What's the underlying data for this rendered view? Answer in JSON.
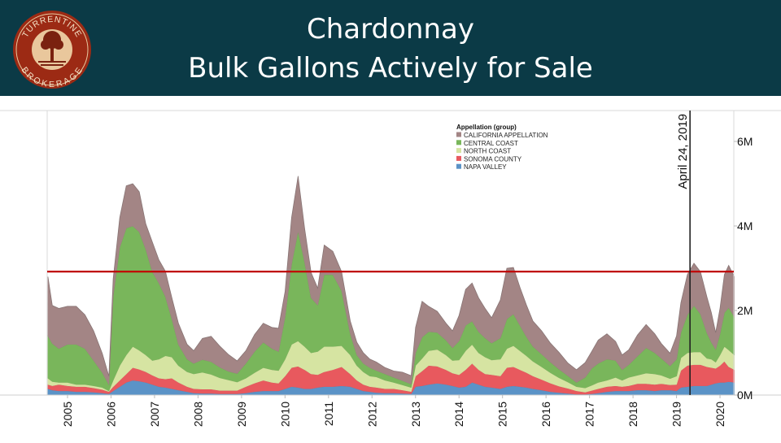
{
  "header": {
    "title_line1": "Chardonnay",
    "title_line2": "Bulk Gallons Actively for Sale",
    "logo_top_text": "TURRENTINE",
    "logo_bottom_text": "BROKERAGE",
    "background_color": "#0b3a46"
  },
  "chart_data": {
    "type": "area",
    "stacked": true,
    "title": "Chardonnay Bulk Gallons Actively for Sale",
    "xlabel": "",
    "ylabel": "",
    "xlim": [
      2004.55,
      2020.33
    ],
    "ylim": [
      0,
      6.7
    ],
    "y_unit": "M gallons",
    "x_ticks": [
      "2005",
      "2006",
      "2007",
      "2008",
      "2009",
      "2010",
      "2011",
      "2012",
      "2013",
      "2014",
      "2015",
      "2016",
      "2017",
      "2018",
      "2019",
      "2020"
    ],
    "y_ticks": [
      "0M",
      "2M",
      "4M",
      "6M"
    ],
    "y_tick_values": [
      0,
      2,
      4,
      6
    ],
    "grid": false,
    "legend": {
      "title": "Appellation (group)",
      "placement": "top-center",
      "entries": [
        "CALIFORNIA APPELLATION",
        "CENTRAL COAST",
        "NORTH COAST",
        "SONOMA COUNTY",
        "NAPA VALLEY"
      ]
    },
    "colors": {
      "NAPA VALLEY": "#5b93c7",
      "SONOMA COUNTY": "#e8595e",
      "NORTH COAST": "#d6e4a2",
      "CENTRAL COAST": "#79b65b",
      "CALIFORNIA APPELLATION": "#a38585"
    },
    "reference_line": {
      "value": 2.92,
      "color": "#c00000"
    },
    "annotation": {
      "label": "April 24, 2019",
      "x": 2019.31
    },
    "x": [
      2004.55,
      2004.65,
      2004.8,
      2005.0,
      2005.2,
      2005.4,
      2005.6,
      2005.8,
      2005.95,
      2006.05,
      2006.2,
      2006.35,
      2006.5,
      2006.65,
      2006.8,
      2006.95,
      2007.1,
      2007.25,
      2007.4,
      2007.55,
      2007.75,
      2007.9,
      2008.1,
      2008.3,
      2008.5,
      2008.7,
      2008.9,
      2009.1,
      2009.3,
      2009.5,
      2009.7,
      2009.85,
      2010.0,
      2010.15,
      2010.3,
      2010.45,
      2010.6,
      2010.75,
      2010.9,
      2011.1,
      2011.3,
      2011.5,
      2011.65,
      2011.8,
      2011.95,
      2012.1,
      2012.3,
      2012.5,
      2012.7,
      2012.9,
      2013.0,
      2013.15,
      2013.3,
      2013.5,
      2013.7,
      2013.85,
      2014.0,
      2014.15,
      2014.3,
      2014.45,
      2014.6,
      2014.75,
      2014.95,
      2015.1,
      2015.25,
      2015.4,
      2015.55,
      2015.7,
      2015.9,
      2016.1,
      2016.3,
      2016.5,
      2016.7,
      2016.9,
      2017.05,
      2017.2,
      2017.4,
      2017.6,
      2017.75,
      2017.9,
      2018.1,
      2018.3,
      2018.5,
      2018.65,
      2018.85,
      2019.0,
      2019.1,
      2019.25,
      2019.4,
      2019.55,
      2019.7,
      2019.8,
      2019.9,
      2020.0,
      2020.1,
      2020.2,
      2020.33
    ],
    "series": [
      {
        "name": "NAPA VALLEY",
        "values": [
          0.15,
          0.12,
          0.1,
          0.1,
          0.08,
          0.08,
          0.07,
          0.05,
          0.03,
          0.1,
          0.2,
          0.3,
          0.35,
          0.33,
          0.3,
          0.25,
          0.2,
          0.18,
          0.15,
          0.12,
          0.08,
          0.05,
          0.04,
          0.04,
          0.03,
          0.03,
          0.03,
          0.05,
          0.08,
          0.1,
          0.1,
          0.1,
          0.15,
          0.2,
          0.18,
          0.15,
          0.15,
          0.18,
          0.2,
          0.2,
          0.22,
          0.2,
          0.15,
          0.1,
          0.08,
          0.06,
          0.05,
          0.05,
          0.04,
          0.03,
          0.2,
          0.22,
          0.25,
          0.28,
          0.25,
          0.22,
          0.18,
          0.2,
          0.3,
          0.25,
          0.2,
          0.18,
          0.15,
          0.2,
          0.22,
          0.2,
          0.18,
          0.15,
          0.12,
          0.08,
          0.06,
          0.04,
          0.02,
          0.02,
          0.03,
          0.05,
          0.08,
          0.1,
          0.1,
          0.1,
          0.12,
          0.12,
          0.1,
          0.12,
          0.12,
          0.1,
          0.18,
          0.2,
          0.22,
          0.22,
          0.22,
          0.25,
          0.28,
          0.3,
          0.3,
          0.32,
          0.3
        ]
      },
      {
        "name": "SONOMA COUNTY",
        "values": [
          0.1,
          0.1,
          0.15,
          0.12,
          0.12,
          0.12,
          0.1,
          0.08,
          0.05,
          0.1,
          0.15,
          0.2,
          0.3,
          0.28,
          0.25,
          0.22,
          0.2,
          0.2,
          0.25,
          0.18,
          0.12,
          0.1,
          0.1,
          0.1,
          0.08,
          0.08,
          0.08,
          0.15,
          0.2,
          0.25,
          0.2,
          0.18,
          0.3,
          0.45,
          0.5,
          0.45,
          0.35,
          0.3,
          0.35,
          0.4,
          0.45,
          0.3,
          0.2,
          0.15,
          0.12,
          0.12,
          0.1,
          0.1,
          0.08,
          0.05,
          0.25,
          0.35,
          0.45,
          0.4,
          0.35,
          0.3,
          0.3,
          0.4,
          0.45,
          0.35,
          0.3,
          0.3,
          0.3,
          0.45,
          0.45,
          0.4,
          0.35,
          0.3,
          0.25,
          0.2,
          0.15,
          0.12,
          0.08,
          0.05,
          0.08,
          0.1,
          0.12,
          0.12,
          0.1,
          0.12,
          0.15,
          0.15,
          0.15,
          0.15,
          0.12,
          0.15,
          0.4,
          0.5,
          0.5,
          0.5,
          0.45,
          0.4,
          0.35,
          0.4,
          0.5,
          0.35,
          0.3
        ]
      },
      {
        "name": "NORTH COAST",
        "values": [
          0.15,
          0.1,
          0.05,
          0.08,
          0.05,
          0.05,
          0.05,
          0.05,
          0.02,
          0.15,
          0.35,
          0.45,
          0.5,
          0.45,
          0.4,
          0.35,
          0.45,
          0.55,
          0.5,
          0.4,
          0.35,
          0.35,
          0.4,
          0.35,
          0.3,
          0.25,
          0.2,
          0.2,
          0.25,
          0.3,
          0.3,
          0.3,
          0.4,
          0.55,
          0.6,
          0.55,
          0.5,
          0.55,
          0.6,
          0.55,
          0.5,
          0.45,
          0.35,
          0.3,
          0.25,
          0.25,
          0.2,
          0.15,
          0.12,
          0.1,
          0.25,
          0.3,
          0.35,
          0.4,
          0.35,
          0.3,
          0.35,
          0.45,
          0.45,
          0.4,
          0.4,
          0.35,
          0.4,
          0.45,
          0.5,
          0.45,
          0.4,
          0.35,
          0.3,
          0.25,
          0.2,
          0.15,
          0.1,
          0.1,
          0.12,
          0.15,
          0.15,
          0.2,
          0.15,
          0.2,
          0.2,
          0.25,
          0.25,
          0.2,
          0.15,
          0.2,
          0.3,
          0.3,
          0.3,
          0.3,
          0.2,
          0.2,
          0.15,
          0.25,
          0.35,
          0.4,
          0.35
        ]
      },
      {
        "name": "CENTRAL COAST",
        "values": [
          1.0,
          0.9,
          0.8,
          0.9,
          0.95,
          0.85,
          0.6,
          0.35,
          0.15,
          2.0,
          2.8,
          3.0,
          2.85,
          2.8,
          2.5,
          2.1,
          1.8,
          1.4,
          0.9,
          0.5,
          0.3,
          0.25,
          0.3,
          0.3,
          0.25,
          0.2,
          0.2,
          0.35,
          0.5,
          0.6,
          0.5,
          0.45,
          1.0,
          1.9,
          2.6,
          2.0,
          1.3,
          1.1,
          1.7,
          1.7,
          1.3,
          0.5,
          0.25,
          0.2,
          0.2,
          0.15,
          0.15,
          0.12,
          0.1,
          0.08,
          0.3,
          0.5,
          0.45,
          0.4,
          0.35,
          0.3,
          0.45,
          0.6,
          0.55,
          0.5,
          0.45,
          0.4,
          0.5,
          0.7,
          0.75,
          0.6,
          0.45,
          0.35,
          0.3,
          0.25,
          0.2,
          0.15,
          0.1,
          0.25,
          0.4,
          0.45,
          0.5,
          0.4,
          0.25,
          0.3,
          0.45,
          0.6,
          0.5,
          0.4,
          0.3,
          0.4,
          0.6,
          0.9,
          1.1,
          0.9,
          0.6,
          0.4,
          0.3,
          0.5,
          0.8,
          1.0,
          0.9
        ]
      },
      {
        "name": "CALIFORNIA APPELLATION",
        "values": [
          1.4,
          0.9,
          0.95,
          0.9,
          0.9,
          0.8,
          0.7,
          0.45,
          0.2,
          0.4,
          0.7,
          1.0,
          1.0,
          0.95,
          0.6,
          0.7,
          0.55,
          0.6,
          0.5,
          0.5,
          0.35,
          0.3,
          0.5,
          0.6,
          0.5,
          0.4,
          0.3,
          0.3,
          0.4,
          0.45,
          0.5,
          0.55,
          0.6,
          1.1,
          1.3,
          0.8,
          0.6,
          0.4,
          0.7,
          0.55,
          0.45,
          0.3,
          0.3,
          0.25,
          0.2,
          0.2,
          0.15,
          0.15,
          0.2,
          0.2,
          0.6,
          0.85,
          0.6,
          0.5,
          0.4,
          0.4,
          0.6,
          0.85,
          0.9,
          0.8,
          0.7,
          0.6,
          0.9,
          1.2,
          1.1,
          0.9,
          0.75,
          0.6,
          0.55,
          0.45,
          0.4,
          0.3,
          0.3,
          0.35,
          0.4,
          0.55,
          0.6,
          0.45,
          0.35,
          0.35,
          0.5,
          0.55,
          0.45,
          0.35,
          0.3,
          0.55,
          0.7,
          0.95,
          1.0,
          1.0,
          0.85,
          0.7,
          0.4,
          0.6,
          0.9,
          1.0,
          0.95
        ]
      }
    ]
  }
}
